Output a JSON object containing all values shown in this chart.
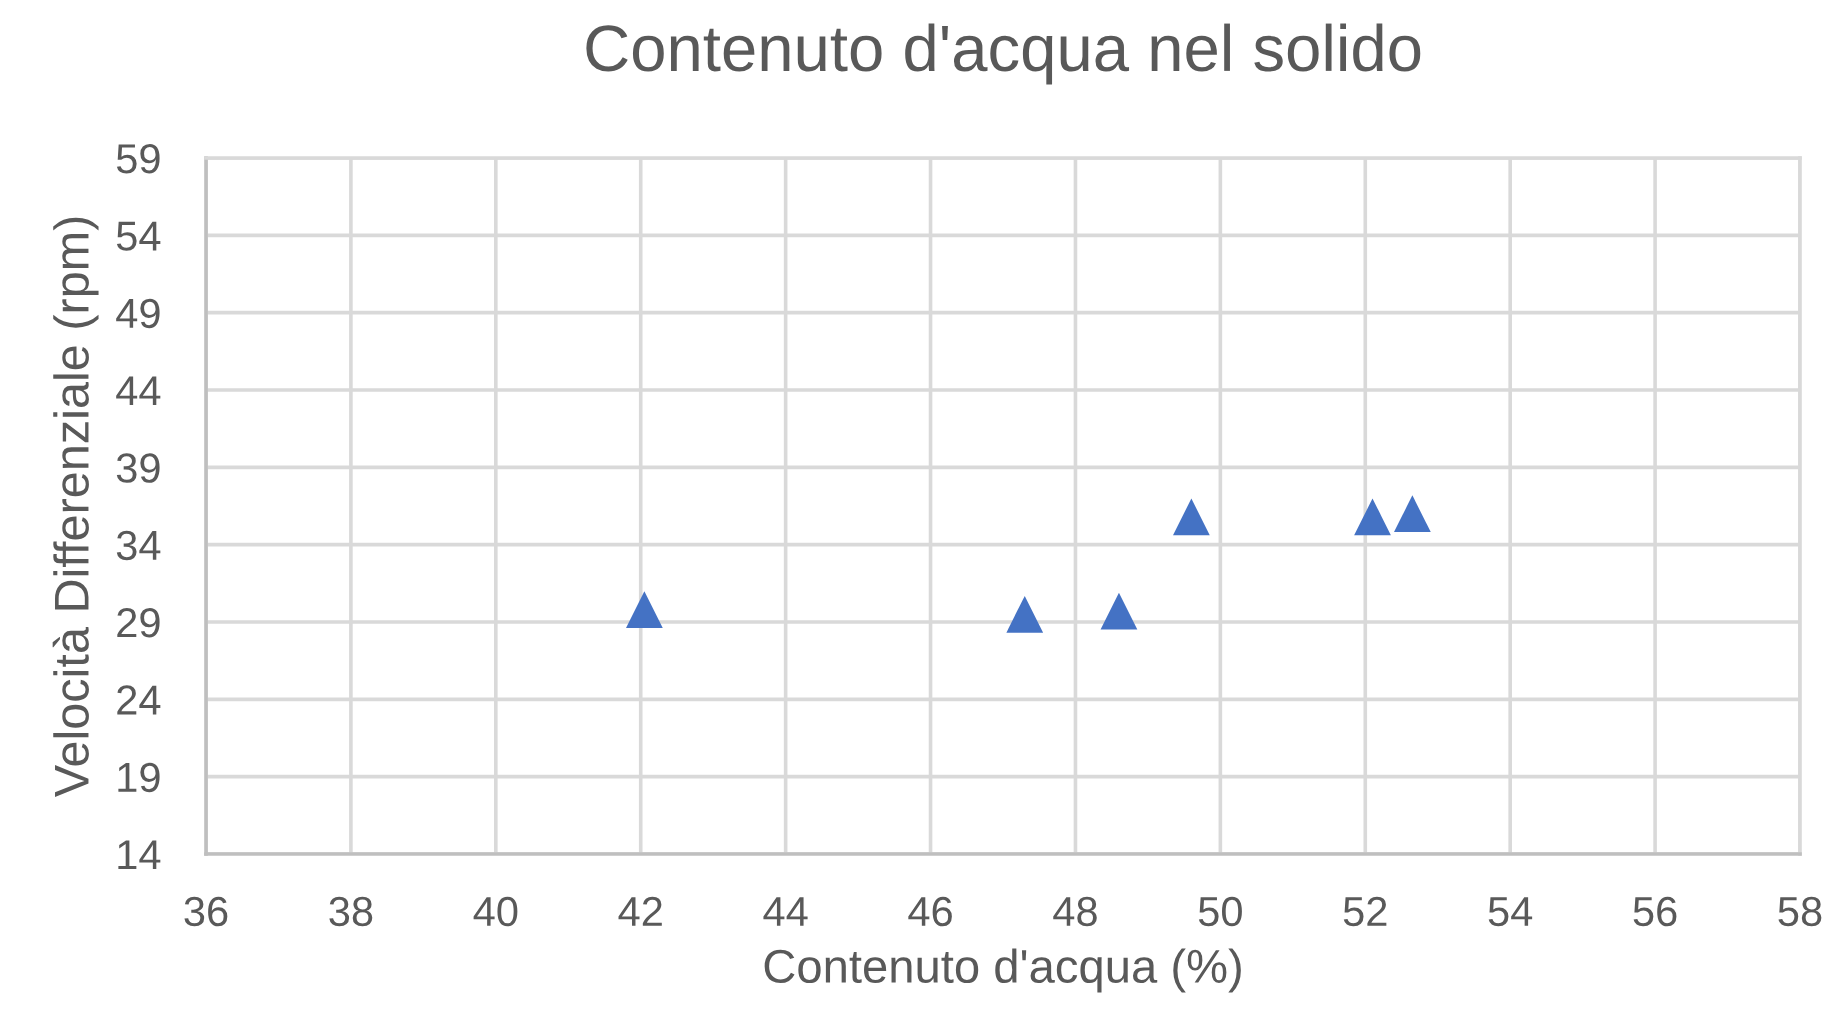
{
  "chart_data": {
    "type": "scatter",
    "title": "Contenuto d'acqua nel solido",
    "xlabel": "Contenuto d'acqua (%)",
    "ylabel": "Velocità Differenziale (rpm)",
    "series": [
      {
        "color": "#4472c4",
        "x": [
          42.05,
          47.3,
          48.6,
          49.6,
          52.1,
          52.65
        ],
        "values": [
          29.8,
          29.5,
          29.7,
          35.8,
          35.8,
          36.0
        ]
      }
    ],
    "xlim": [
      36,
      58
    ],
    "xticks": [
      36,
      38,
      40,
      42,
      44,
      46,
      48,
      50,
      52,
      54,
      56,
      58
    ],
    "ylim": [
      14,
      59
    ],
    "yticks": [
      14,
      19,
      24,
      29,
      34,
      39,
      44,
      49,
      54,
      59
    ],
    "grid": true,
    "marker": "triangle"
  }
}
